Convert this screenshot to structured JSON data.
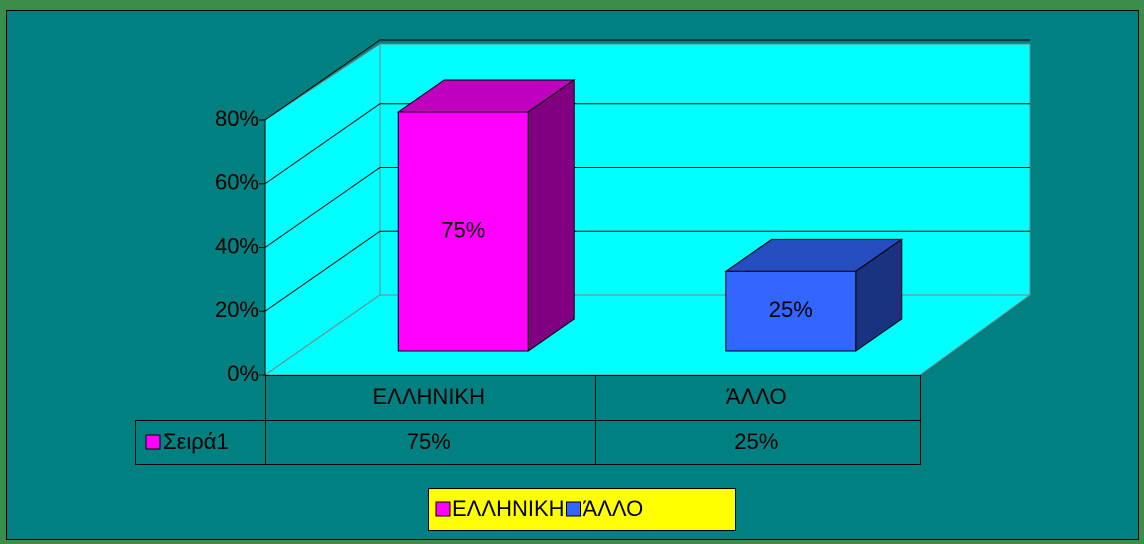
{
  "chart_data": {
    "type": "bar3d",
    "categories": [
      "ΕΛΛΗΝΙΚΗ",
      "ΆΛΛΟ"
    ],
    "series": [
      {
        "name": "Σειρά1",
        "values": [
          75,
          25
        ],
        "value_labels": [
          "75%",
          "25%"
        ]
      }
    ],
    "colors": [
      "#ff00ff",
      "#3366ff"
    ],
    "ylim": [
      0,
      80
    ],
    "yticks": [
      {
        "value": 0,
        "label": "0%"
      },
      {
        "value": 20,
        "label": "20%"
      },
      {
        "value": 40,
        "label": "40%"
      },
      {
        "value": 60,
        "label": "60%"
      },
      {
        "value": 80,
        "label": "80%"
      }
    ],
    "grid": true,
    "legend": "bottom",
    "data_table": true
  }
}
